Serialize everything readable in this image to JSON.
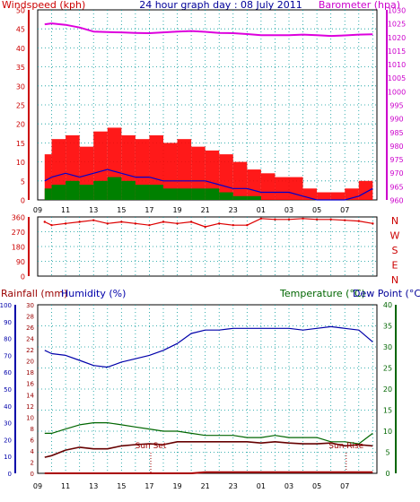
{
  "title": "24 hour graph day : 08 July 2011",
  "colors": {
    "wind_axis": "#cc0000",
    "baro_axis": "#cc00cc",
    "wind_gust": "#ff0000",
    "wind_avg": "#0000cc",
    "wind_min": "#008000",
    "barometer": "#dd00dd",
    "direction": "#dd0000",
    "rain_axis": "#990000",
    "humidity": "#0000aa",
    "temperature": "#006600",
    "dewpoint": "#660000",
    "rainfall": "#aa0000",
    "grid": "#009999",
    "axis_tick_left": "#000099",
    "axis_tick_right": "#006600"
  },
  "x_tick_labels": [
    "11",
    "13",
    "15",
    "17",
    "19",
    "21",
    "23",
    "01",
    "03",
    "05",
    "07",
    "09"
  ],
  "panels": {
    "wind": {
      "ylabel_left": "Windspeed (kph)",
      "ylabel_right": "Barometer (hpa)",
      "left_ticks": [
        "0",
        "5",
        "10",
        "15",
        "20",
        "25",
        "30",
        "35",
        "40",
        "45",
        "50"
      ],
      "right_ticks": [
        "960",
        "965",
        "970",
        "975",
        "980",
        "985",
        "990",
        "995",
        "1000",
        "1005",
        "1010",
        "1015",
        "1020",
        "1025",
        "1030"
      ]
    },
    "direction": {
      "left_ticks": [
        "0",
        "90",
        "180",
        "270",
        "360"
      ],
      "compass_labels": [
        "N",
        "W",
        "S",
        "E",
        "N"
      ]
    },
    "temp": {
      "ylabel_left_1": "Rainfall (mm)",
      "ylabel_left_2": "Humidity (%)",
      "ylabel_right_1": "Temperature (°C)",
      "ylabel_right_2": "Dew Point (°C)",
      "rain_ticks": [
        "0",
        "2",
        "4",
        "6",
        "8",
        "10",
        "12",
        "14",
        "16",
        "18",
        "20",
        "22",
        "24",
        "26",
        "28",
        "30"
      ],
      "humidity_ticks": [
        "0",
        "10",
        "20",
        "30",
        "40",
        "50",
        "60",
        "70",
        "80",
        "90",
        "100"
      ],
      "temp_ticks": [
        "0",
        "5",
        "10",
        "15",
        "20",
        "25",
        "30",
        "35",
        "40"
      ],
      "sunset_label": "Sun Set",
      "sunrise_label": "Sun Rise"
    }
  },
  "chart_data": [
    {
      "type": "line",
      "title": "24 hour graph day : 08 July 2011",
      "x_unit": "hour of day (09:00 08 Jul to 09:00 09 Jul)",
      "x": [
        9.5,
        10,
        11,
        12,
        13,
        14,
        15,
        16,
        17,
        18,
        19,
        20,
        21,
        22,
        23,
        24,
        25,
        26,
        27,
        28,
        29,
        30,
        31,
        32,
        33
      ],
      "ylabel": "Windspeed (kph)",
      "ylim": [
        0,
        50
      ],
      "series": [
        {
          "name": "Gust",
          "axis": "left",
          "values": [
            12,
            16,
            17,
            14,
            18,
            19,
            17,
            16,
            17,
            15,
            16,
            14,
            13,
            12,
            10,
            8,
            7,
            6,
            6,
            3,
            2,
            2,
            3,
            5,
            8
          ]
        },
        {
          "name": "Average",
          "axis": "left",
          "values": [
            5,
            6,
            7,
            6,
            7,
            8,
            7,
            6,
            6,
            5,
            5,
            5,
            5,
            4,
            3,
            3,
            2,
            2,
            2,
            1,
            0,
            0,
            0,
            1,
            3
          ]
        },
        {
          "name": "Barometer",
          "axis": "right",
          "ylim": [
            960,
            1030
          ],
          "values": [
            1024.7,
            1025,
            1024.5,
            1023.5,
            1022,
            1021.8,
            1021.7,
            1021.5,
            1021.4,
            1021.7,
            1022,
            1022.2,
            1021.9,
            1021.5,
            1021.4,
            1021.1,
            1020.7,
            1020.7,
            1020.7,
            1020.9,
            1020.7,
            1020.4,
            1020.6,
            1020.9,
            1021
          ]
        }
      ]
    },
    {
      "type": "scatter",
      "ylabel": "Wind direction (deg)",
      "ylim": [
        0,
        360
      ],
      "x": [
        9.5,
        10,
        11,
        12,
        13,
        14,
        15,
        16,
        17,
        18,
        19,
        20,
        21,
        22,
        23,
        24,
        25,
        26,
        27,
        28,
        29,
        30,
        31,
        32,
        33
      ],
      "values": [
        330,
        310,
        320,
        330,
        340,
        320,
        330,
        320,
        310,
        330,
        320,
        330,
        300,
        320,
        310,
        310,
        350,
        345,
        345,
        350,
        345,
        345,
        340,
        335,
        320
      ]
    },
    {
      "type": "line",
      "x": [
        9.5,
        10,
        11,
        12,
        13,
        14,
        15,
        16,
        17,
        18,
        19,
        20,
        21,
        22,
        23,
        24,
        25,
        26,
        27,
        28,
        29,
        30,
        31,
        32,
        33
      ],
      "series": [
        {
          "name": "Humidity",
          "axis": "humidity",
          "ylim": [
            0,
            100
          ],
          "values": [
            73,
            71,
            70,
            67,
            64,
            63,
            66,
            68,
            70,
            73,
            77,
            83,
            85,
            85,
            86,
            86,
            86,
            86,
            86,
            85,
            86,
            87,
            86,
            85,
            78
          ]
        },
        {
          "name": "Temperature",
          "axis": "temp",
          "ylim": [
            0,
            40
          ],
          "values": [
            9.5,
            9.5,
            10.5,
            11.5,
            12,
            12,
            11.5,
            11,
            10.5,
            10,
            10,
            9.5,
            9,
            9,
            9,
            8.5,
            8.5,
            9,
            8.5,
            8.5,
            8.5,
            7.5,
            7.5,
            7,
            9.5
          ]
        },
        {
          "name": "Dew Point",
          "axis": "temp",
          "ylim": [
            0,
            40
          ],
          "values": [
            3.8,
            4.2,
            5.5,
            6.2,
            5.8,
            5.8,
            6.5,
            6.8,
            7,
            6.8,
            7.5,
            7.5,
            7.5,
            7.5,
            7.5,
            7.5,
            7.2,
            7.5,
            7.2,
            7,
            7,
            7.2,
            6.5,
            6.8,
            6.5
          ]
        },
        {
          "name": "Rainfall",
          "axis": "rain",
          "ylim": [
            0,
            30
          ],
          "values": [
            0,
            0,
            0,
            0,
            0,
            0,
            0,
            0,
            0,
            0,
            0,
            0,
            0.2,
            0.2,
            0.2,
            0.2,
            0.2,
            0.2,
            0.2,
            0.2,
            0.2,
            0.2,
            0.2,
            0.2,
            0.2
          ]
        }
      ]
    }
  ]
}
